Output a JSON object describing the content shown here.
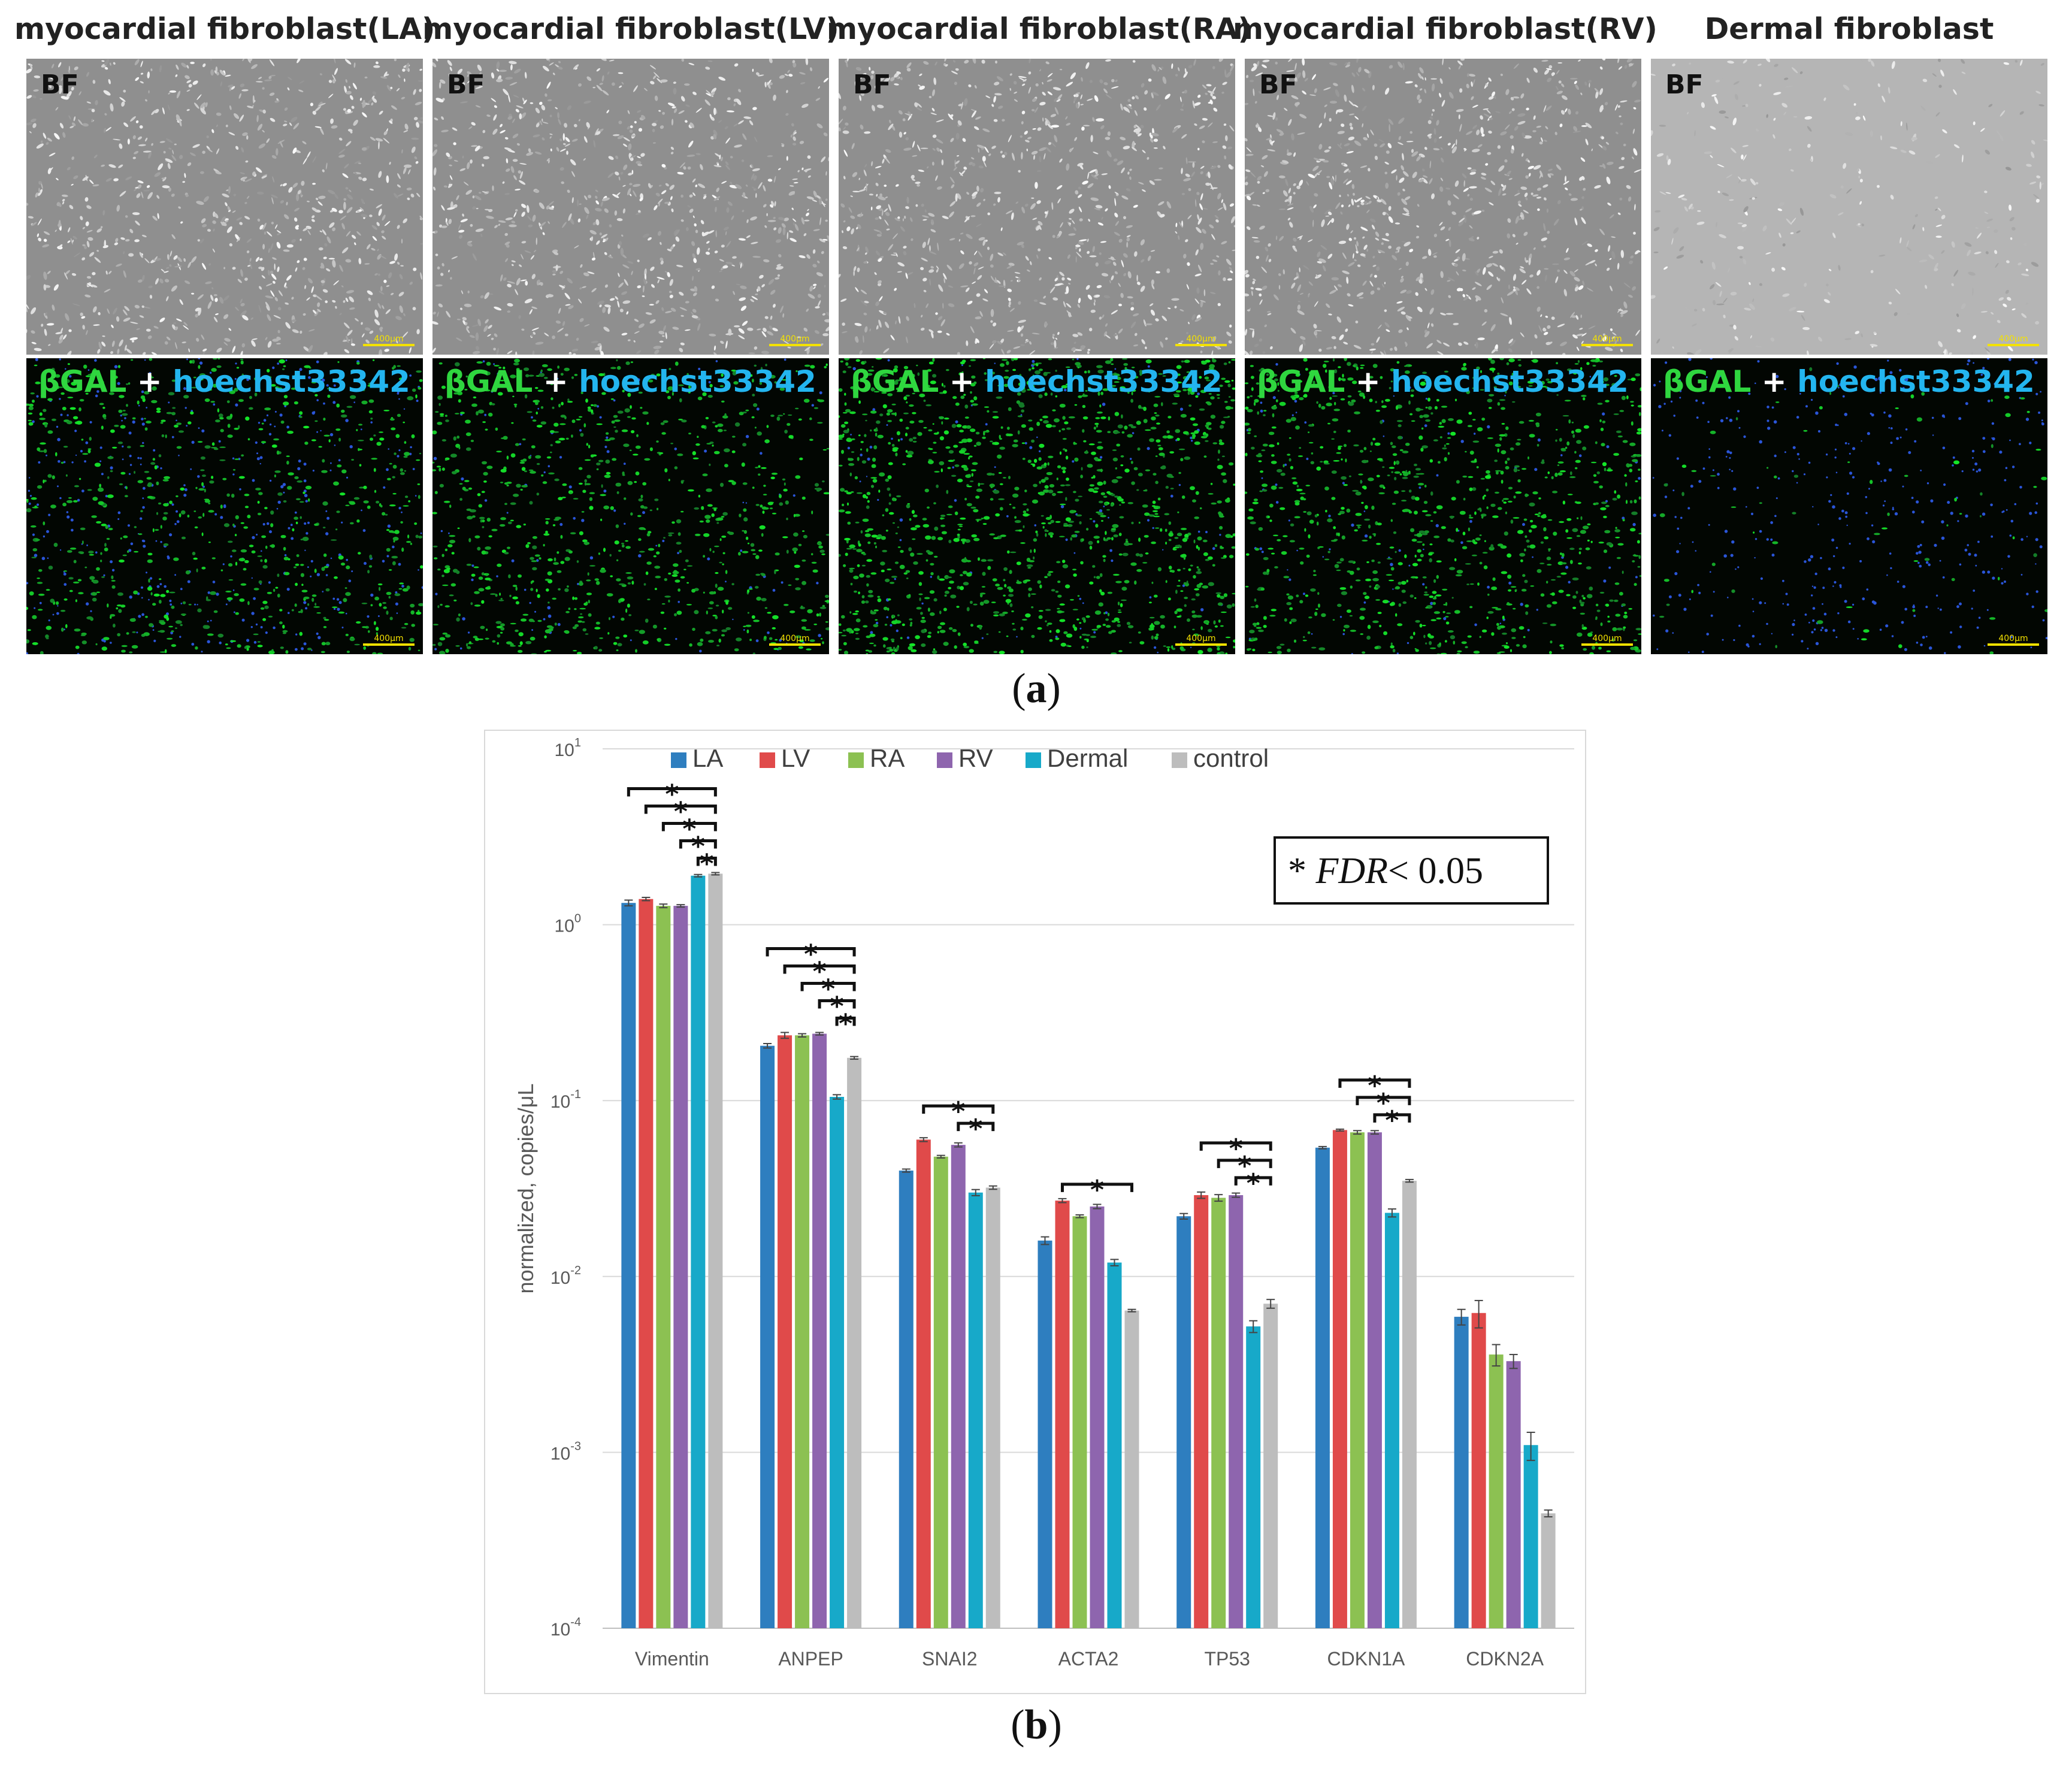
{
  "panel_a": {
    "caption": "a",
    "columns": [
      {
        "title": "myocardial fibroblast(LA)",
        "bf_label": "BF",
        "scale": "400μm",
        "green_density": 0.55,
        "blue_density": 0.55
      },
      {
        "title": "myocardial fibroblast(LV)",
        "bf_label": "BF",
        "scale": "400μm",
        "green_density": 0.65,
        "blue_density": 0.15
      },
      {
        "title": "myocardial fibroblast(RA)",
        "bf_label": "BF",
        "scale": "400μm",
        "green_density": 0.95,
        "blue_density": 0.15
      },
      {
        "title": "myocardial fibroblast(RV)",
        "bf_label": "BF",
        "scale": "400μm",
        "green_density": 0.75,
        "blue_density": 0.15
      },
      {
        "title": "Dermal fibroblast",
        "bf_label": "BF",
        "scale": "400μm",
        "green_density": 0.05,
        "blue_density": 0.6
      }
    ],
    "stain": {
      "part1": "βGAL",
      "part2": " + ",
      "part3": "hoechst33342"
    },
    "colors": {
      "green": "#2fd63f",
      "blue": "#23b5ef",
      "scale": "#f3e100"
    }
  },
  "panel_b": {
    "caption": "b"
  },
  "chart_data": {
    "type": "bar",
    "yscale": "log",
    "ylim": [
      0.0001,
      10
    ],
    "ylabel": "normalized, copies/μL",
    "yticks": [
      {
        "base": "10",
        "exp": "1",
        "value": 10
      },
      {
        "base": "10",
        "exp": "0",
        "value": 1
      },
      {
        "base": "10",
        "exp": "-1",
        "value": 0.1
      },
      {
        "base": "10",
        "exp": "-2",
        "value": 0.01
      },
      {
        "base": "10",
        "exp": "-3",
        "value": 0.001
      },
      {
        "base": "10",
        "exp": "-4",
        "value": 0.0001
      }
    ],
    "grid": true,
    "legend_position": "top",
    "categories": [
      "Vimentin",
      "ANPEP",
      "SNAI2",
      "ACTA2",
      "TP53",
      "CDKN1A",
      "CDKN2A"
    ],
    "series": [
      {
        "name": "LA",
        "color": "#2e7ebf",
        "values": [
          1.33,
          0.205,
          0.04,
          0.016,
          0.022,
          0.054,
          0.0059
        ],
        "errors": [
          0.05,
          0.006,
          0.0008,
          0.0008,
          0.0008,
          0.0008,
          0.0006
        ]
      },
      {
        "name": "LV",
        "color": "#e04a4a",
        "values": [
          1.4,
          0.235,
          0.06,
          0.027,
          0.029,
          0.068,
          0.0062
        ],
        "errors": [
          0.03,
          0.009,
          0.0015,
          0.0007,
          0.0012,
          0.0008,
          0.0011
        ]
      },
      {
        "name": "RA",
        "color": "#8cc152",
        "values": [
          1.28,
          0.235,
          0.048,
          0.022,
          0.028,
          0.066,
          0.0036
        ],
        "errors": [
          0.03,
          0.005,
          0.0008,
          0.0004,
          0.0012,
          0.0015,
          0.0005
        ]
      },
      {
        "name": "RV",
        "color": "#8e65ae",
        "values": [
          1.28,
          0.24,
          0.056,
          0.025,
          0.029,
          0.066,
          0.0033
        ],
        "errors": [
          0.02,
          0.004,
          0.0015,
          0.0007,
          0.0008,
          0.0015,
          0.0003
        ]
      },
      {
        "name": "Dermal",
        "color": "#17a9c9",
        "values": [
          1.9,
          0.105,
          0.03,
          0.012,
          0.0052,
          0.023,
          0.0011
        ],
        "errors": [
          0.03,
          0.003,
          0.0012,
          0.0005,
          0.0004,
          0.0012,
          0.0002
        ]
      },
      {
        "name": "control",
        "color": "#bdbdbd",
        "values": [
          1.95,
          0.175,
          0.032,
          0.0064,
          0.007,
          0.035,
          0.00045
        ],
        "errors": [
          0.03,
          0.003,
          0.0007,
          0.0001,
          0.0004,
          0.0006,
          2e-05
        ]
      }
    ],
    "significance": [
      {
        "category": 0,
        "pairs": [
          [
            0,
            5
          ],
          [
            1,
            5
          ],
          [
            2,
            5
          ],
          [
            3,
            5
          ],
          [
            4,
            5
          ]
        ]
      },
      {
        "category": 1,
        "pairs": [
          [
            0,
            5
          ],
          [
            1,
            5
          ],
          [
            2,
            5
          ],
          [
            3,
            5
          ],
          [
            4,
            5
          ]
        ]
      },
      {
        "category": 2,
        "pairs": [
          [
            1,
            5
          ],
          [
            3,
            5
          ]
        ]
      },
      {
        "category": 3,
        "pairs": [
          [
            1,
            5
          ]
        ]
      },
      {
        "category": 4,
        "pairs": [
          [
            1,
            5
          ],
          [
            2,
            5
          ],
          [
            3,
            5
          ]
        ]
      },
      {
        "category": 5,
        "pairs": [
          [
            1,
            5
          ],
          [
            2,
            5
          ],
          [
            3,
            5
          ]
        ]
      }
    ],
    "significance_mark": "*",
    "annotation": {
      "star": "*",
      "fdr": "FDR",
      "rest": "< 0.05"
    }
  }
}
